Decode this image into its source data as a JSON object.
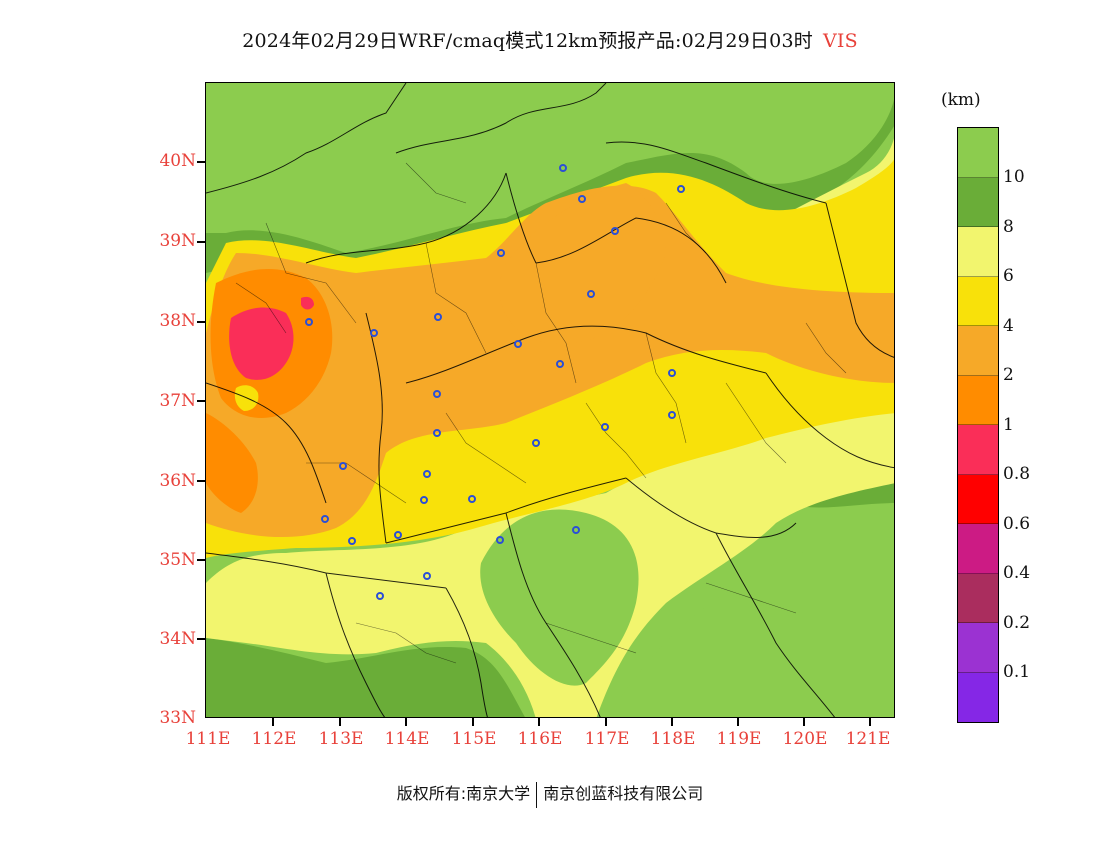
{
  "title": {
    "text": "2024年02月29日WRF/cmaq模式12km预报产品:02月29日03时",
    "variable": "VIS"
  },
  "map": {
    "lat_labels": [
      "40N",
      "39N",
      "38N",
      "37N",
      "36N",
      "35N",
      "34N",
      "33N"
    ],
    "lon_labels": [
      "111E",
      "112E",
      "113E",
      "114E",
      "115E",
      "116E",
      "117E",
      "118E",
      "119E",
      "120E",
      "121E"
    ],
    "lat_range": [
      33,
      41
    ],
    "lon_range": [
      111,
      121.4
    ],
    "label_color": "#e8413a",
    "city_marker_color": "#2b4fd6"
  },
  "legend": {
    "unit": "(km)",
    "labels": [
      "10",
      "8",
      "6",
      "4",
      "2",
      "1",
      "0.8",
      "0.6",
      "0.4",
      "0.2",
      "0.1"
    ],
    "colors": [
      "#8ccc4e",
      "#6aad38",
      "#f2f56e",
      "#f8e10a",
      "#f6a928",
      "#ff8c00",
      "#fa2e58",
      "#ff0000",
      "#cc1b84",
      "#aa2d5e",
      "#9b32d2",
      "#8527e6"
    ]
  },
  "footer": {
    "left": "版权所有:南京大学",
    "right": "南京创蓝科技有限公司"
  }
}
